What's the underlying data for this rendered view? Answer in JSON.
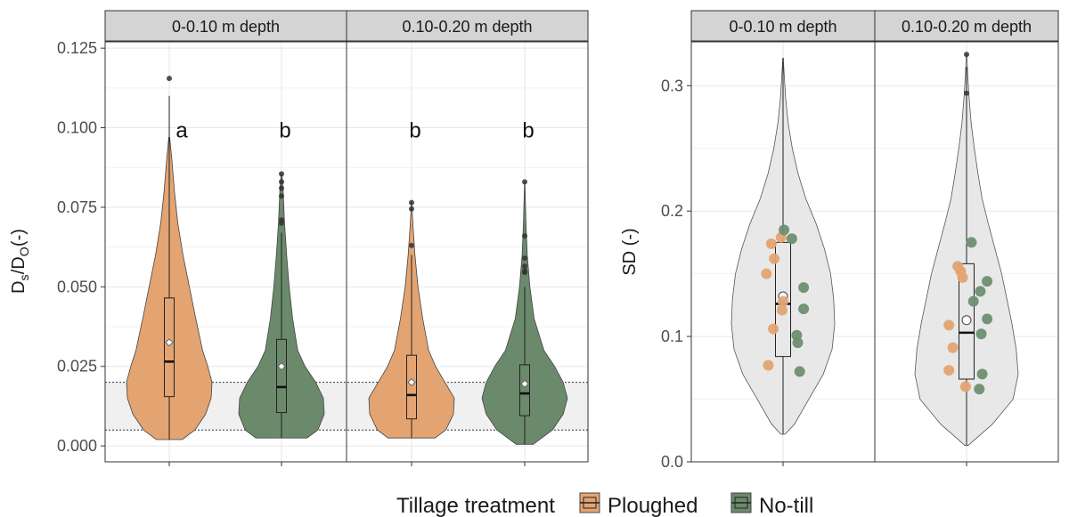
{
  "colors": {
    "ploughed": "#e3a472",
    "notill": "#6b8a6c",
    "ploughed_dot": "#e3a472",
    "notill_dot": "#6e8f72",
    "strip": "#d4d4d4",
    "grid": "#e6e6e6",
    "panel_border": "#333333",
    "band": "#f0f0f0",
    "grey_violin": "#e8e8e8"
  },
  "legend": {
    "title": "Tillage treatment",
    "items": [
      {
        "key": "ploughed",
        "label": "Ploughed"
      },
      {
        "key": "notill",
        "label": "No-till"
      }
    ]
  },
  "chart_data": [
    {
      "type": "violin",
      "ylabel": "Ds/DO (-)",
      "ylabel_main": "D",
      "ylabel_sub1": "s",
      "ylabel_mid": "/D",
      "ylabel_sub2": "O",
      "ylabel_tail": " (-)",
      "ylim": [
        -0.005,
        0.127
      ],
      "yticks": [
        0.0,
        0.025,
        0.05,
        0.075,
        0.1,
        0.125
      ],
      "ytick_labels": [
        "0.000",
        "0.025",
        "0.050",
        "0.075",
        "0.100",
        "0.125"
      ],
      "reference_band": [
        0.005,
        0.02
      ],
      "facets": [
        {
          "label": "0-0.10 m depth",
          "groups": [
            {
              "treatment": "ploughed",
              "letter": "a",
              "letter_y": 0.097,
              "min": 0.002,
              "q1": 0.0155,
              "median": 0.0265,
              "q3": 0.0465,
              "max": 0.11,
              "mean": 0.0325,
              "outliers": [
                0.1155
              ],
              "density": [
                [
                  0.002,
                  0.3
                ],
                [
                  0.005,
                  0.6
                ],
                [
                  0.01,
                  0.85
                ],
                [
                  0.015,
                  0.98
                ],
                [
                  0.02,
                  1.0
                ],
                [
                  0.025,
                  0.9
                ],
                [
                  0.03,
                  0.78
                ],
                [
                  0.04,
                  0.62
                ],
                [
                  0.05,
                  0.47
                ],
                [
                  0.06,
                  0.32
                ],
                [
                  0.07,
                  0.2
                ],
                [
                  0.08,
                  0.12
                ],
                [
                  0.09,
                  0.06
                ],
                [
                  0.097,
                  0.01
                ]
              ]
            },
            {
              "treatment": "notill",
              "letter": "b",
              "letter_y": 0.097,
              "min": 0.0025,
              "q1": 0.0105,
              "median": 0.0185,
              "q3": 0.0335,
              "max": 0.067,
              "mean": 0.025,
              "outliers": [
                0.07,
                0.071,
                0.0785,
                0.081,
                0.083,
                0.0855
              ],
              "density": [
                [
                  0.0025,
                  0.6
                ],
                [
                  0.005,
                  0.85
                ],
                [
                  0.01,
                  1.0
                ],
                [
                  0.015,
                  0.98
                ],
                [
                  0.02,
                  0.8
                ],
                [
                  0.025,
                  0.55
                ],
                [
                  0.03,
                  0.38
                ],
                [
                  0.04,
                  0.26
                ],
                [
                  0.05,
                  0.18
                ],
                [
                  0.06,
                  0.12
                ],
                [
                  0.07,
                  0.07
                ],
                [
                  0.08,
                  0.04
                ],
                [
                  0.0855,
                  0.01
                ]
              ]
            }
          ]
        },
        {
          "label": "0.10-0.20 m depth",
          "groups": [
            {
              "treatment": "ploughed",
              "letter": "b",
              "letter_y": 0.097,
              "min": 0.0025,
              "q1": 0.0085,
              "median": 0.016,
              "q3": 0.0285,
              "max": 0.06,
              "mean": 0.02,
              "outliers": [
                0.063,
                0.0745,
                0.0765
              ],
              "density": [
                [
                  0.0025,
                  0.55
                ],
                [
                  0.005,
                  0.8
                ],
                [
                  0.01,
                  0.98
                ],
                [
                  0.015,
                  1.0
                ],
                [
                  0.02,
                  0.78
                ],
                [
                  0.025,
                  0.56
                ],
                [
                  0.03,
                  0.4
                ],
                [
                  0.04,
                  0.26
                ],
                [
                  0.05,
                  0.15
                ],
                [
                  0.06,
                  0.08
                ],
                [
                  0.07,
                  0.03
                ],
                [
                  0.0765,
                  0.005
                ]
              ]
            },
            {
              "treatment": "notill",
              "letter": "b",
              "letter_y": 0.097,
              "min": 0.0005,
              "q1": 0.0095,
              "median": 0.0165,
              "q3": 0.0255,
              "max": 0.05,
              "mean": 0.0195,
              "outliers": [
                0.0545,
                0.055,
                0.0565,
                0.059,
                0.066,
                0.083
              ],
              "density": [
                [
                  0.0005,
                  0.2
                ],
                [
                  0.005,
                  0.65
                ],
                [
                  0.01,
                  0.9
                ],
                [
                  0.015,
                  1.0
                ],
                [
                  0.02,
                  0.9
                ],
                [
                  0.025,
                  0.7
                ],
                [
                  0.03,
                  0.45
                ],
                [
                  0.04,
                  0.22
                ],
                [
                  0.05,
                  0.12
                ],
                [
                  0.06,
                  0.06
                ],
                [
                  0.07,
                  0.03
                ],
                [
                  0.083,
                  0.005
                ]
              ]
            }
          ]
        }
      ]
    },
    {
      "type": "violin",
      "ylabel": "SD (-)",
      "ylim": [
        0.0,
        0.335
      ],
      "yticks": [
        0.0,
        0.1,
        0.2,
        0.3
      ],
      "ytick_labels": [
        "0.0",
        "0.1",
        "0.2",
        "0.3"
      ],
      "facets": [
        {
          "label": "0-0.10 m depth",
          "box": {
            "min": 0.022,
            "q1": 0.084,
            "median": 0.126,
            "q3": 0.175,
            "max": 0.322,
            "mean": 0.132,
            "outliers": []
          },
          "density": [
            [
              0.022,
              0.04
            ],
            [
              0.03,
              0.22
            ],
            [
              0.05,
              0.5
            ],
            [
              0.07,
              0.78
            ],
            [
              0.09,
              0.95
            ],
            [
              0.11,
              1.0
            ],
            [
              0.13,
              0.98
            ],
            [
              0.15,
              0.92
            ],
            [
              0.17,
              0.8
            ],
            [
              0.19,
              0.64
            ],
            [
              0.21,
              0.44
            ],
            [
              0.23,
              0.29
            ],
            [
              0.25,
              0.18
            ],
            [
              0.27,
              0.1
            ],
            [
              0.29,
              0.05
            ],
            [
              0.31,
              0.02
            ],
            [
              0.322,
              0.005
            ]
          ],
          "points": [
            {
              "treatment": "ploughed",
              "y": 0.174,
              "dx": -0.6
            },
            {
              "treatment": "ploughed",
              "y": 0.179,
              "dx": -0.1
            },
            {
              "treatment": "ploughed",
              "y": 0.162,
              "dx": -0.45
            },
            {
              "treatment": "ploughed",
              "y": 0.15,
              "dx": -0.85
            },
            {
              "treatment": "ploughed",
              "y": 0.128,
              "dx": 0.0
            },
            {
              "treatment": "ploughed",
              "y": 0.121,
              "dx": -0.05
            },
            {
              "treatment": "ploughed",
              "y": 0.106,
              "dx": -0.5
            },
            {
              "treatment": "ploughed",
              "y": 0.077,
              "dx": -0.75
            },
            {
              "treatment": "notill",
              "y": 0.185,
              "dx": 0.05
            },
            {
              "treatment": "notill",
              "y": 0.178,
              "dx": 0.45
            },
            {
              "treatment": "notill",
              "y": 0.139,
              "dx": 1.05
            },
            {
              "treatment": "notill",
              "y": 0.122,
              "dx": 1.05
            },
            {
              "treatment": "notill",
              "y": 0.101,
              "dx": 0.7
            },
            {
              "treatment": "notill",
              "y": 0.095,
              "dx": 0.75
            },
            {
              "treatment": "notill",
              "y": 0.072,
              "dx": 0.85
            }
          ]
        },
        {
          "label": "0.10-0.20 m depth",
          "box": {
            "min": 0.013,
            "q1": 0.066,
            "median": 0.103,
            "q3": 0.158,
            "max": 0.315,
            "mean": 0.113,
            "outliers": [
              0.294,
              0.325
            ]
          },
          "density": [
            [
              0.013,
              0.03
            ],
            [
              0.03,
              0.5
            ],
            [
              0.05,
              0.9
            ],
            [
              0.07,
              1.0
            ],
            [
              0.09,
              0.96
            ],
            [
              0.11,
              0.88
            ],
            [
              0.13,
              0.78
            ],
            [
              0.15,
              0.68
            ],
            [
              0.17,
              0.55
            ],
            [
              0.19,
              0.42
            ],
            [
              0.21,
              0.3
            ],
            [
              0.23,
              0.22
            ],
            [
              0.25,
              0.15
            ],
            [
              0.27,
              0.09
            ],
            [
              0.29,
              0.05
            ],
            [
              0.31,
              0.02
            ],
            [
              0.325,
              0.005
            ]
          ],
          "points": [
            {
              "treatment": "ploughed",
              "y": 0.156,
              "dx": -0.45
            },
            {
              "treatment": "ploughed",
              "y": 0.152,
              "dx": -0.3
            },
            {
              "treatment": "ploughed",
              "y": 0.147,
              "dx": -0.2
            },
            {
              "treatment": "ploughed",
              "y": 0.109,
              "dx": -0.9
            },
            {
              "treatment": "ploughed",
              "y": 0.091,
              "dx": -0.7
            },
            {
              "treatment": "ploughed",
              "y": 0.073,
              "dx": -0.9
            },
            {
              "treatment": "ploughed",
              "y": 0.06,
              "dx": -0.05
            },
            {
              "treatment": "notill",
              "y": 0.175,
              "dx": 0.25
            },
            {
              "treatment": "notill",
              "y": 0.144,
              "dx": 1.05
            },
            {
              "treatment": "notill",
              "y": 0.136,
              "dx": 0.7
            },
            {
              "treatment": "notill",
              "y": 0.128,
              "dx": 0.35
            },
            {
              "treatment": "notill",
              "y": 0.114,
              "dx": 1.05
            },
            {
              "treatment": "notill",
              "y": 0.102,
              "dx": 0.75
            },
            {
              "treatment": "notill",
              "y": 0.07,
              "dx": 0.8
            },
            {
              "treatment": "notill",
              "y": 0.058,
              "dx": 0.65
            }
          ]
        }
      ]
    }
  ]
}
